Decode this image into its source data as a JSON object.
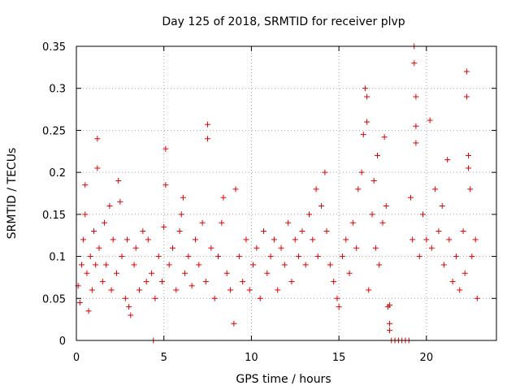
{
  "chart_data": {
    "type": "scatter",
    "title": "Day 125 of 2018, SRMTID for receiver plvp",
    "xlabel": "GPS time / hours",
    "ylabel": "SRMTID / TECUs",
    "xlim": [
      0,
      24
    ],
    "ylim": [
      0,
      0.35
    ],
    "xticks": [
      0,
      5,
      10,
      15,
      20
    ],
    "xtick_labels": [
      "0",
      "5",
      "10",
      "15",
      "20"
    ],
    "yticks": [
      0,
      0.05,
      0.1,
      0.15,
      0.2,
      0.25,
      0.3,
      0.35
    ],
    "ytick_labels": [
      "0",
      "0.05",
      "0.1",
      "0.15",
      "0.2",
      "0.25",
      "0.3",
      "0.35"
    ],
    "grid": true,
    "marker": "plus",
    "color": "#dd0000",
    "series": [
      {
        "name": "SRMTID",
        "points": [
          [
            0.1,
            0.065
          ],
          [
            0.2,
            0.045
          ],
          [
            0.3,
            0.09
          ],
          [
            0.4,
            0.12
          ],
          [
            0.5,
            0.15
          ],
          [
            0.5,
            0.185
          ],
          [
            0.6,
            0.08
          ],
          [
            0.7,
            0.035
          ],
          [
            0.8,
            0.1
          ],
          [
            0.9,
            0.06
          ],
          [
            1.0,
            0.13
          ],
          [
            1.1,
            0.09
          ],
          [
            1.2,
            0.24
          ],
          [
            1.2,
            0.205
          ],
          [
            1.3,
            0.11
          ],
          [
            1.5,
            0.07
          ],
          [
            1.6,
            0.14
          ],
          [
            1.7,
            0.09
          ],
          [
            1.9,
            0.16
          ],
          [
            2.0,
            0.06
          ],
          [
            2.1,
            0.12
          ],
          [
            2.3,
            0.08
          ],
          [
            2.4,
            0.19
          ],
          [
            2.5,
            0.165
          ],
          [
            2.6,
            0.1
          ],
          [
            2.8,
            0.05
          ],
          [
            2.9,
            0.12
          ],
          [
            3.0,
            0.04
          ],
          [
            3.1,
            0.03
          ],
          [
            3.3,
            0.09
          ],
          [
            3.4,
            0.11
          ],
          [
            3.6,
            0.06
          ],
          [
            3.8,
            0.13
          ],
          [
            4.0,
            0.07
          ],
          [
            4.1,
            0.12
          ],
          [
            4.3,
            0.08
          ],
          [
            4.5,
            0.05
          ],
          [
            4.7,
            0.1
          ],
          [
            4.9,
            0.07
          ],
          [
            5.0,
            0.135
          ],
          [
            5.1,
            0.185
          ],
          [
            5.1,
            0.228
          ],
          [
            5.3,
            0.09
          ],
          [
            5.5,
            0.11
          ],
          [
            5.7,
            0.06
          ],
          [
            5.9,
            0.13
          ],
          [
            6.0,
            0.15
          ],
          [
            6.1,
            0.17
          ],
          [
            6.2,
            0.08
          ],
          [
            6.4,
            0.1
          ],
          [
            6.6,
            0.065
          ],
          [
            6.8,
            0.12
          ],
          [
            7.0,
            0.09
          ],
          [
            7.2,
            0.14
          ],
          [
            7.4,
            0.07
          ],
          [
            7.5,
            0.257
          ],
          [
            7.5,
            0.24
          ],
          [
            7.7,
            0.11
          ],
          [
            7.9,
            0.05
          ],
          [
            8.1,
            0.1
          ],
          [
            8.3,
            0.14
          ],
          [
            8.4,
            0.17
          ],
          [
            8.6,
            0.08
          ],
          [
            8.8,
            0.06
          ],
          [
            9.0,
            0.02
          ],
          [
            9.1,
            0.18
          ],
          [
            9.3,
            0.1
          ],
          [
            9.5,
            0.07
          ],
          [
            9.7,
            0.12
          ],
          [
            9.9,
            0.06
          ],
          [
            10.1,
            0.09
          ],
          [
            10.3,
            0.11
          ],
          [
            10.5,
            0.05
          ],
          [
            10.7,
            0.13
          ],
          [
            10.9,
            0.08
          ],
          [
            11.1,
            0.1
          ],
          [
            11.3,
            0.12
          ],
          [
            11.5,
            0.06
          ],
          [
            11.7,
            0.11
          ],
          [
            11.9,
            0.09
          ],
          [
            12.1,
            0.14
          ],
          [
            12.3,
            0.07
          ],
          [
            12.5,
            0.12
          ],
          [
            12.7,
            0.1
          ],
          [
            12.9,
            0.13
          ],
          [
            13.1,
            0.09
          ],
          [
            13.3,
            0.15
          ],
          [
            13.5,
            0.12
          ],
          [
            13.7,
            0.18
          ],
          [
            13.8,
            0.1
          ],
          [
            14.0,
            0.16
          ],
          [
            14.2,
            0.2
          ],
          [
            14.3,
            0.13
          ],
          [
            14.5,
            0.09
          ],
          [
            14.7,
            0.07
          ],
          [
            14.9,
            0.05
          ],
          [
            15.0,
            0.04
          ],
          [
            15.2,
            0.1
          ],
          [
            15.4,
            0.12
          ],
          [
            15.6,
            0.08
          ],
          [
            15.8,
            0.14
          ],
          [
            16.0,
            0.11
          ],
          [
            16.1,
            0.18
          ],
          [
            16.3,
            0.2
          ],
          [
            16.4,
            0.245
          ],
          [
            16.5,
            0.3
          ],
          [
            16.6,
            0.29
          ],
          [
            16.6,
            0.26
          ],
          [
            16.7,
            0.06
          ],
          [
            16.9,
            0.15
          ],
          [
            17.0,
            0.19
          ],
          [
            17.1,
            0.11
          ],
          [
            17.2,
            0.22
          ],
          [
            17.3,
            0.09
          ],
          [
            17.5,
            0.14
          ],
          [
            17.6,
            0.242
          ],
          [
            17.7,
            0.16
          ],
          [
            17.8,
            0.04
          ],
          [
            17.9,
            0.042
          ],
          [
            17.9,
            0.02
          ],
          [
            17.9,
            0.012
          ],
          [
            18.0,
            0.0
          ],
          [
            18.2,
            0.0
          ],
          [
            18.4,
            0.0
          ],
          [
            18.6,
            0.0
          ],
          [
            18.8,
            0.0
          ],
          [
            19.0,
            0.0
          ],
          [
            19.1,
            0.17
          ],
          [
            19.2,
            0.12
          ],
          [
            19.3,
            0.35
          ],
          [
            19.3,
            0.33
          ],
          [
            19.4,
            0.29
          ],
          [
            19.4,
            0.255
          ],
          [
            19.4,
            0.235
          ],
          [
            19.6,
            0.1
          ],
          [
            19.8,
            0.15
          ],
          [
            20.0,
            0.12
          ],
          [
            20.2,
            0.262
          ],
          [
            20.3,
            0.11
          ],
          [
            20.5,
            0.18
          ],
          [
            20.7,
            0.13
          ],
          [
            20.9,
            0.16
          ],
          [
            21.0,
            0.09
          ],
          [
            21.2,
            0.215
          ],
          [
            21.3,
            0.12
          ],
          [
            21.5,
            0.07
          ],
          [
            21.7,
            0.1
          ],
          [
            21.9,
            0.06
          ],
          [
            22.1,
            0.13
          ],
          [
            22.2,
            0.08
          ],
          [
            22.3,
            0.32
          ],
          [
            22.3,
            0.29
          ],
          [
            22.4,
            0.22
          ],
          [
            22.4,
            0.205
          ],
          [
            22.5,
            0.18
          ],
          [
            22.6,
            0.1
          ],
          [
            22.8,
            0.12
          ],
          [
            22.9,
            0.05
          ],
          [
            4.4,
            0.0
          ]
        ]
      }
    ]
  }
}
